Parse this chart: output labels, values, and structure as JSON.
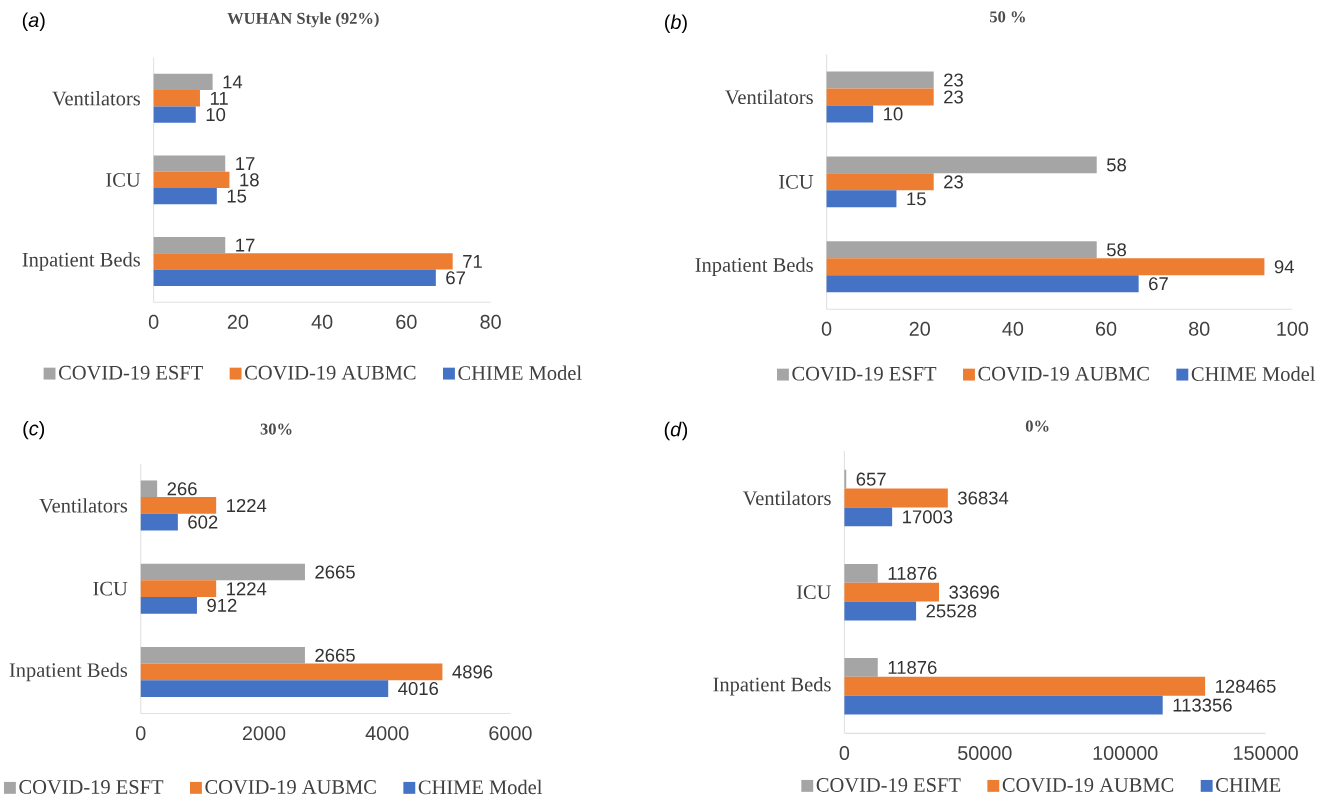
{
  "chart_data": [
    {
      "type": "bar",
      "orientation": "horizontal",
      "title": "WUHAN Style (92%)",
      "annotations": [
        "(*a*)"
      ],
      "categories": [
        "Ventilators",
        "ICU",
        "Inpatient Beds"
      ],
      "series": [
        {
          "name": "COVID-19 ESFT",
          "color": "#a5a5a5",
          "values": [
            14,
            17,
            17
          ]
        },
        {
          "name": "COVID-19 AUBMC",
          "color": "#ed7d31",
          "values": [
            11,
            18,
            71
          ]
        },
        {
          "name": "CHIME Model",
          "color": "#4472c4",
          "values": [
            10,
            15,
            67
          ]
        }
      ],
      "xlim": [
        0,
        80
      ],
      "xticks": [
        0,
        20,
        40,
        60,
        80
      ],
      "legend": "bottom",
      "data_labels": true
    },
    {
      "type": "bar",
      "orientation": "horizontal",
      "title": "50 %",
      "annotations": [
        "(*b*)"
      ],
      "categories": [
        "Ventilators",
        "ICU",
        "Inpatient Beds"
      ],
      "series": [
        {
          "name": "COVID-19 ESFT",
          "color": "#a5a5a5",
          "values": [
            23,
            58,
            58
          ]
        },
        {
          "name": "COVID-19 AUBMC",
          "color": "#ed7d31",
          "values": [
            23,
            23,
            94
          ]
        },
        {
          "name": "CHIME Model",
          "color": "#4472c4",
          "values": [
            10,
            15,
            67
          ]
        }
      ],
      "xlim": [
        0,
        100
      ],
      "xticks": [
        0,
        20,
        40,
        60,
        80,
        100
      ],
      "legend": "bottom",
      "data_labels": true
    },
    {
      "type": "bar",
      "orientation": "horizontal",
      "title": "30%",
      "annotations": [
        "(*c*)"
      ],
      "categories": [
        "Ventilators",
        "ICU",
        "Inpatient Beds"
      ],
      "series": [
        {
          "name": "COVID-19 ESFT",
          "color": "#a5a5a5",
          "values": [
            266,
            2665,
            2665
          ]
        },
        {
          "name": "COVID-19 AUBMC",
          "color": "#ed7d31",
          "values": [
            1224,
            1224,
            4896
          ]
        },
        {
          "name": "CHIME Model",
          "color": "#4472c4",
          "values": [
            602,
            912,
            4016
          ]
        }
      ],
      "xlim": [
        0,
        6000
      ],
      "xticks": [
        0,
        2000,
        4000,
        6000
      ],
      "legend": "bottom",
      "data_labels": true
    },
    {
      "type": "bar",
      "orientation": "horizontal",
      "title": "0%",
      "annotations": [
        "(*d*)"
      ],
      "categories": [
        "Ventilators",
        "ICU",
        "Inpatient Beds"
      ],
      "series": [
        {
          "name": "COVID-19 ESFT",
          "color": "#a5a5a5",
          "values": [
            657,
            11876,
            11876
          ]
        },
        {
          "name": "COVID-19 AUBMC",
          "color": "#ed7d31",
          "values": [
            36834,
            33696,
            128465
          ]
        },
        {
          "name": "CHIME",
          "color": "#4472c4",
          "values": [
            17003,
            25528,
            113356
          ]
        }
      ],
      "xlim": [
        0,
        150000
      ],
      "xticks": [
        0,
        50000,
        100000,
        150000
      ],
      "legend": "bottom",
      "data_labels": true
    }
  ]
}
